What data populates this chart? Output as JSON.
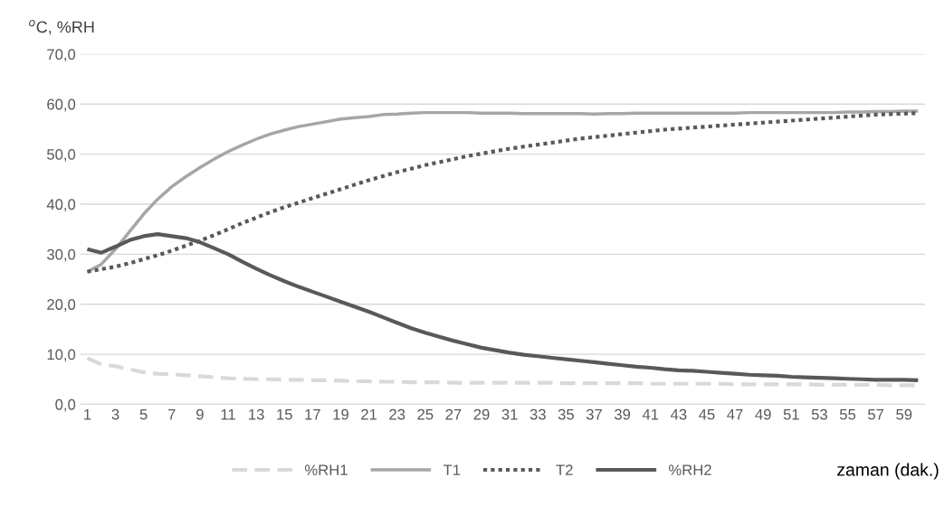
{
  "chart_data": {
    "type": "line",
    "ylabel": "$^{o}$C, %RH",
    "xlabel": "zaman (dak.)",
    "categories": [
      "1",
      null,
      "3",
      null,
      "5",
      null,
      "7",
      null,
      "9",
      null,
      "11",
      null,
      "13",
      null,
      "15",
      null,
      "17",
      null,
      "19",
      null,
      "21",
      null,
      "23",
      null,
      "25",
      null,
      "27",
      null,
      "29",
      null,
      "31",
      null,
      "33",
      null,
      "35",
      null,
      "37",
      null,
      "39",
      null,
      "41",
      null,
      "43",
      null,
      "45",
      null,
      "47",
      null,
      "49",
      null,
      "51",
      null,
      "53",
      null,
      "55",
      null,
      "57",
      null,
      "59",
      null
    ],
    "series": [
      {
        "name": "%RH1",
        "color": "#d9d9d9",
        "line_style": "dashed",
        "values": [
          9.2,
          8,
          7.6,
          7,
          6.4,
          6.1,
          6,
          5.8,
          5.6,
          5.4,
          5.2,
          5.1,
          5,
          5,
          4.9,
          4.9,
          4.8,
          4.8,
          4.7,
          4.6,
          4.6,
          4.5,
          4.5,
          4.4,
          4.4,
          4.4,
          4.3,
          4.3,
          4.3,
          4.3,
          4.3,
          4.3,
          4.3,
          4.3,
          4.2,
          4.2,
          4.2,
          4.2,
          4.2,
          4.2,
          4.1,
          4.1,
          4.1,
          4.1,
          4.1,
          4.1,
          4,
          4,
          4,
          4,
          4,
          4,
          3.9,
          3.9,
          3.9,
          3.9,
          3.9,
          3.8,
          3.8,
          3.8
        ]
      },
      {
        "name": "T1",
        "color": "#a6a6a6",
        "line_style": "solid",
        "values": [
          26.5,
          28,
          31,
          34.5,
          38,
          41,
          43.5,
          45.5,
          47.3,
          49,
          50.5,
          51.8,
          53,
          54,
          54.8,
          55.5,
          56,
          56.5,
          57,
          57.3,
          57.5,
          57.9,
          58,
          58.2,
          58.3,
          58.3,
          58.3,
          58.3,
          58.2,
          58.2,
          58.2,
          58.1,
          58.1,
          58.1,
          58.1,
          58.1,
          58,
          58.1,
          58.1,
          58.2,
          58.2,
          58.2,
          58.2,
          58.2,
          58.2,
          58.2,
          58.2,
          58.3,
          58.3,
          58.3,
          58.3,
          58.3,
          58.3,
          58.3,
          58.4,
          58.4,
          58.5,
          58.5,
          58.6,
          58.6
        ]
      },
      {
        "name": "T2",
        "color": "#595959",
        "line_style": "dotted",
        "values": [
          26.5,
          27,
          27.5,
          28.2,
          29,
          29.8,
          30.7,
          31.7,
          32.7,
          33.8,
          35,
          36.2,
          37.3,
          38.4,
          39.4,
          40.3,
          41.2,
          42.1,
          43,
          43.9,
          44.8,
          45.6,
          46.4,
          47.1,
          47.8,
          48.4,
          49,
          49.6,
          50.1,
          50.6,
          51.1,
          51.5,
          51.9,
          52.3,
          52.7,
          53.1,
          53.4,
          53.7,
          54,
          54.3,
          54.6,
          54.9,
          55.1,
          55.3,
          55.5,
          55.7,
          55.9,
          56.1,
          56.3,
          56.5,
          56.7,
          56.9,
          57.1,
          57.3,
          57.5,
          57.7,
          57.9,
          58,
          58.1,
          58.2
        ]
      },
      {
        "name": "%RH2",
        "color": "#595959",
        "line_style": "solid",
        "values": [
          31,
          30.3,
          31.5,
          32.8,
          33.6,
          34,
          33.6,
          33.2,
          32.4,
          31.2,
          30,
          28.5,
          27.1,
          25.8,
          24.6,
          23.5,
          22.5,
          21.5,
          20.5,
          19.5,
          18.5,
          17.4,
          16.3,
          15.2,
          14.3,
          13.5,
          12.7,
          12,
          11.3,
          10.8,
          10.3,
          9.9,
          9.6,
          9.3,
          9,
          8.7,
          8.4,
          8.1,
          7.8,
          7.5,
          7.3,
          7,
          6.8,
          6.7,
          6.5,
          6.3,
          6.1,
          5.9,
          5.8,
          5.7,
          5.5,
          5.4,
          5.3,
          5.2,
          5.1,
          5,
          4.9,
          4.9,
          4.9,
          4.8
        ]
      }
    ],
    "ylim": [
      0,
      70
    ],
    "yticks": [
      {
        "value": 0,
        "label": "0,0"
      },
      {
        "value": 10,
        "label": "10,0"
      },
      {
        "value": 20,
        "label": "20,0"
      },
      {
        "value": 30,
        "label": "30,0"
      },
      {
        "value": 40,
        "label": "40,0"
      },
      {
        "value": 50,
        "label": "50,0"
      },
      {
        "value": 60,
        "label": "60,0"
      },
      {
        "value": 70,
        "label": "70,0"
      }
    ],
    "grid": "y",
    "legend": "bottom",
    "marker": "none"
  }
}
